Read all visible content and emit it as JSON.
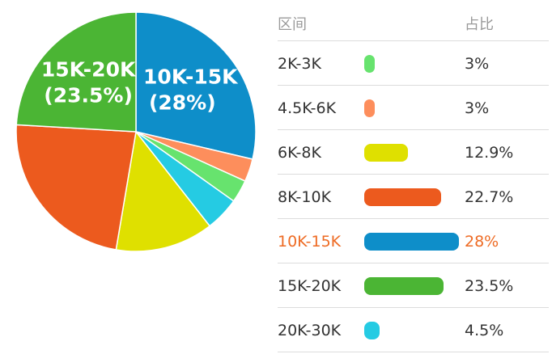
{
  "chart_data": {
    "type": "pie",
    "slices": [
      {
        "label": "10K-15K",
        "value": 28,
        "color": "#0e8ec9",
        "pct_text": "(28%)",
        "show_label": true
      },
      {
        "label": "4.5K-6K",
        "value": 3,
        "color": "#fd8e5c",
        "show_label": false
      },
      {
        "label": "2K-3K",
        "value": 3,
        "color": "#67e36e",
        "show_label": false
      },
      {
        "label": "20K-30K",
        "value": 4.5,
        "color": "#25cbe3",
        "show_label": false
      },
      {
        "label": "6K-8K",
        "value": 12.9,
        "color": "#dfe000",
        "show_label": false
      },
      {
        "label": "8K-10K",
        "value": 22.7,
        "color": "#ec5a1e",
        "show_label": false
      },
      {
        "label": "15K-20K",
        "value": 23.5,
        "color": "#4bb534",
        "pct_text": "(23.5%)",
        "show_label": true
      }
    ]
  },
  "table": {
    "header": {
      "range": "区间",
      "ratio": "占比"
    },
    "rows": [
      {
        "range": "2K-3K",
        "pct": "3%",
        "value": 3,
        "color": "#67e36e",
        "active": false
      },
      {
        "range": "4.5K-6K",
        "pct": "3%",
        "value": 3,
        "color": "#fd8e5c",
        "active": false
      },
      {
        "range": "6K-8K",
        "pct": "12.9%",
        "value": 12.9,
        "color": "#dfe000",
        "active": false
      },
      {
        "range": "8K-10K",
        "pct": "22.7%",
        "value": 22.7,
        "color": "#ec5a1e",
        "active": false
      },
      {
        "range": "10K-15K",
        "pct": "28%",
        "value": 28,
        "color": "#0e8ec9",
        "active": true
      },
      {
        "range": "15K-20K",
        "pct": "23.5%",
        "value": 23.5,
        "color": "#4bb534",
        "active": false
      },
      {
        "range": "20K-30K",
        "pct": "4.5%",
        "value": 4.5,
        "color": "#25cbe3",
        "active": false
      }
    ]
  }
}
